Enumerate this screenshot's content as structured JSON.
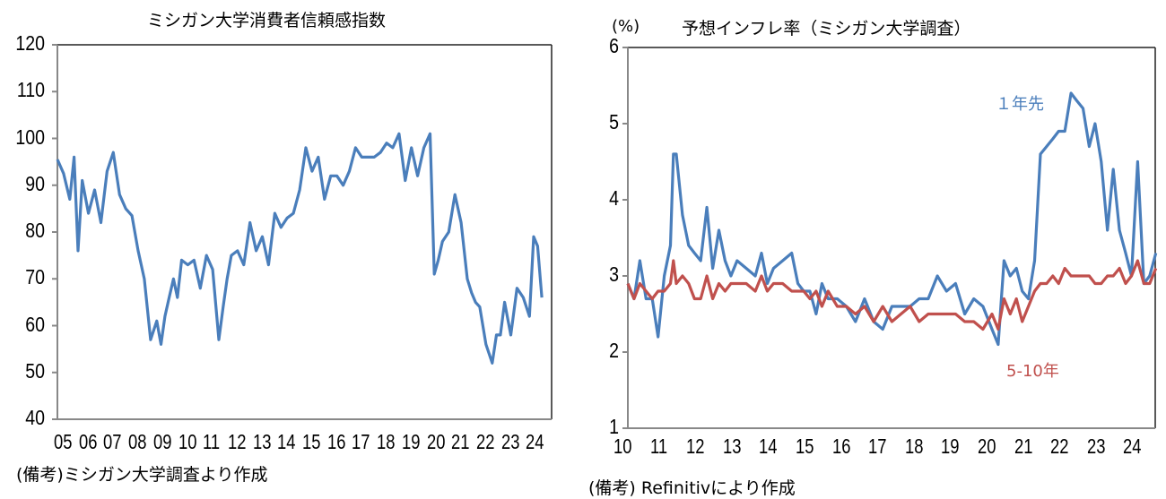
{
  "chart_data": [
    {
      "type": "line",
      "title": "ミシガン大学消費者信頼感指数",
      "xlabel": "",
      "ylabel": "",
      "ylim": [
        40,
        120
      ],
      "yticks": [
        40,
        50,
        60,
        70,
        80,
        90,
        100,
        110,
        120
      ],
      "categories": [
        "05",
        "06",
        "07",
        "08",
        "09",
        "10",
        "11",
        "12",
        "13",
        "14",
        "15",
        "16",
        "17",
        "18",
        "19",
        "20",
        "21",
        "22",
        "23",
        "24"
      ],
      "grid": false,
      "series": [
        {
          "name": "ミシガン大学消費者信頼感指数",
          "color": "#4A7EBB",
          "x": [
            2005.0,
            2005.25,
            2005.5,
            2005.67,
            2005.83,
            2006.0,
            2006.25,
            2006.5,
            2006.75,
            2007.0,
            2007.25,
            2007.5,
            2007.75,
            2008.0,
            2008.25,
            2008.5,
            2008.75,
            2009.0,
            2009.17,
            2009.33,
            2009.5,
            2009.67,
            2009.83,
            2010.0,
            2010.25,
            2010.5,
            2010.75,
            2011.0,
            2011.25,
            2011.5,
            2011.67,
            2011.83,
            2012.0,
            2012.25,
            2012.5,
            2012.75,
            2013.0,
            2013.25,
            2013.5,
            2013.75,
            2014.0,
            2014.25,
            2014.5,
            2014.75,
            2015.0,
            2015.25,
            2015.5,
            2015.75,
            2016.0,
            2016.25,
            2016.5,
            2016.75,
            2017.0,
            2017.25,
            2017.5,
            2017.75,
            2018.0,
            2018.25,
            2018.5,
            2018.75,
            2019.0,
            2019.25,
            2019.5,
            2019.75,
            2020.0,
            2020.17,
            2020.33,
            2020.5,
            2020.75,
            2021.0,
            2021.25,
            2021.5,
            2021.67,
            2021.83,
            2022.0,
            2022.25,
            2022.5,
            2022.67,
            2022.83,
            2023.0,
            2023.25,
            2023.5,
            2023.75,
            2024.0,
            2024.17,
            2024.33,
            2024.5
          ],
          "values": [
            95.5,
            92.5,
            87,
            96,
            76,
            91,
            84,
            89,
            82,
            93,
            97,
            88,
            85,
            83.5,
            76,
            70,
            57,
            61,
            56,
            62,
            66,
            70,
            66,
            74,
            73,
            74,
            68,
            75,
            72,
            57,
            64,
            70,
            75,
            76,
            73,
            82,
            76,
            79,
            73,
            84,
            81,
            83,
            84,
            89,
            98,
            93,
            96,
            87,
            92,
            92,
            90,
            93,
            98,
            96,
            96,
            96,
            97,
            99,
            98,
            101,
            91,
            98,
            92,
            98,
            101,
            71,
            74,
            78,
            80,
            88,
            82,
            70,
            67,
            65,
            64,
            56,
            52,
            58,
            58,
            65,
            58,
            68,
            66,
            62,
            79,
            77,
            66
          ]
        }
      ]
    },
    {
      "type": "line",
      "title": "予想インフレ率（ミシガン大学調査）",
      "xlabel": "",
      "ylabel": "(%)",
      "ylim": [
        1,
        6
      ],
      "yticks": [
        1,
        2,
        3,
        4,
        5,
        6
      ],
      "categories": [
        "10",
        "11",
        "12",
        "13",
        "14",
        "15",
        "16",
        "17",
        "18",
        "19",
        "20",
        "21",
        "22",
        "23",
        "24"
      ],
      "grid": false,
      "annotations": [
        "1年先",
        "5-10年"
      ],
      "series": [
        {
          "name": "1年先",
          "color": "#4A7EBB",
          "x": [
            2010.0,
            2010.17,
            2010.33,
            2010.5,
            2010.67,
            2010.83,
            2011.0,
            2011.17,
            2011.25,
            2011.33,
            2011.5,
            2011.67,
            2011.83,
            2012.0,
            2012.17,
            2012.33,
            2012.5,
            2012.67,
            2012.83,
            2013.0,
            2013.25,
            2013.5,
            2013.67,
            2013.83,
            2014.0,
            2014.25,
            2014.5,
            2014.67,
            2014.83,
            2015.0,
            2015.17,
            2015.33,
            2015.5,
            2015.75,
            2016.0,
            2016.25,
            2016.5,
            2016.75,
            2017.0,
            2017.25,
            2017.5,
            2017.75,
            2018.0,
            2018.25,
            2018.5,
            2018.75,
            2019.0,
            2019.25,
            2019.5,
            2019.75,
            2020.0,
            2020.17,
            2020.33,
            2020.5,
            2020.67,
            2020.83,
            2021.0,
            2021.17,
            2021.33,
            2021.5,
            2021.67,
            2021.83,
            2022.0,
            2022.17,
            2022.33,
            2022.5,
            2022.67,
            2022.83,
            2023.0,
            2023.17,
            2023.33,
            2023.5,
            2023.67,
            2023.83,
            2024.0,
            2024.17,
            2024.33,
            2024.5
          ],
          "values": [
            2.9,
            2.7,
            3.2,
            2.7,
            2.7,
            2.2,
            3.0,
            3.4,
            4.6,
            4.6,
            3.8,
            3.4,
            3.3,
            3.2,
            3.9,
            3.1,
            3.6,
            3.2,
            3.0,
            3.2,
            3.1,
            3.0,
            3.3,
            2.9,
            3.1,
            3.2,
            3.3,
            2.9,
            2.8,
            2.8,
            2.5,
            2.9,
            2.7,
            2.7,
            2.6,
            2.4,
            2.7,
            2.4,
            2.3,
            2.6,
            2.6,
            2.6,
            2.7,
            2.7,
            3.0,
            2.8,
            2.9,
            2.5,
            2.7,
            2.6,
            2.3,
            2.1,
            3.2,
            3.0,
            3.1,
            2.8,
            2.7,
            3.2,
            4.6,
            4.7,
            4.8,
            4.9,
            4.9,
            5.4,
            5.3,
            5.2,
            4.7,
            5.0,
            4.5,
            3.6,
            4.4,
            3.6,
            3.3,
            3.0,
            4.5,
            2.9,
            3.0,
            3.3
          ]
        },
        {
          "name": "5-10年",
          "color": "#C0504D",
          "x": [
            2010.0,
            2010.17,
            2010.33,
            2010.5,
            2010.67,
            2010.83,
            2011.0,
            2011.17,
            2011.25,
            2011.33,
            2011.5,
            2011.67,
            2011.83,
            2012.0,
            2012.17,
            2012.33,
            2012.5,
            2012.67,
            2012.83,
            2013.0,
            2013.25,
            2013.5,
            2013.67,
            2013.83,
            2014.0,
            2014.25,
            2014.5,
            2014.67,
            2014.83,
            2015.0,
            2015.17,
            2015.33,
            2015.5,
            2015.75,
            2016.0,
            2016.25,
            2016.5,
            2016.75,
            2017.0,
            2017.25,
            2017.5,
            2017.75,
            2018.0,
            2018.25,
            2018.5,
            2018.75,
            2019.0,
            2019.25,
            2019.5,
            2019.75,
            2020.0,
            2020.17,
            2020.33,
            2020.5,
            2020.67,
            2020.83,
            2021.0,
            2021.17,
            2021.33,
            2021.5,
            2021.67,
            2021.83,
            2022.0,
            2022.17,
            2022.33,
            2022.5,
            2022.67,
            2022.83,
            2023.0,
            2023.17,
            2023.33,
            2023.5,
            2023.67,
            2023.83,
            2024.0,
            2024.17,
            2024.33,
            2024.5
          ],
          "values": [
            2.9,
            2.7,
            2.9,
            2.8,
            2.7,
            2.8,
            2.8,
            2.9,
            3.2,
            2.9,
            3.0,
            2.9,
            2.7,
            2.7,
            3.0,
            2.7,
            2.9,
            2.8,
            2.9,
            2.9,
            2.9,
            2.8,
            3.0,
            2.8,
            2.9,
            2.9,
            2.8,
            2.8,
            2.8,
            2.7,
            2.8,
            2.6,
            2.8,
            2.6,
            2.6,
            2.5,
            2.6,
            2.4,
            2.6,
            2.4,
            2.5,
            2.6,
            2.4,
            2.5,
            2.5,
            2.5,
            2.5,
            2.4,
            2.4,
            2.3,
            2.5,
            2.3,
            2.7,
            2.5,
            2.7,
            2.4,
            2.6,
            2.8,
            2.9,
            2.9,
            3.0,
            2.9,
            3.1,
            3.0,
            3.0,
            3.0,
            3.0,
            2.9,
            2.9,
            3.0,
            3.0,
            3.1,
            2.9,
            3.0,
            3.2,
            2.9,
            2.9,
            3.1
          ]
        }
      ]
    }
  ],
  "left": {
    "title": "ミシガン大学消費者信頼感指数",
    "note": "(備考)ミシガン大学調査より作成",
    "yticks": [
      "120",
      "110",
      "100",
      "90",
      "80",
      "70",
      "60",
      "50",
      "40"
    ],
    "xticks": [
      "05",
      "06",
      "07",
      "08",
      "09",
      "10",
      "11",
      "12",
      "13",
      "14",
      "15",
      "16",
      "17",
      "18",
      "19",
      "20",
      "21",
      "22",
      "23",
      "24"
    ]
  },
  "right": {
    "title": "予想インフレ率（ミシガン大学調査）",
    "unit": "(%)",
    "note": "(備考) Refinitivにより作成",
    "yticks": [
      "6",
      "5",
      "4",
      "3",
      "2",
      "1"
    ],
    "xticks": [
      "10",
      "11",
      "12",
      "13",
      "14",
      "15",
      "16",
      "17",
      "18",
      "19",
      "20",
      "21",
      "22",
      "23",
      "24"
    ],
    "label_1y": "１年先",
    "label_5_10y": "5-10年"
  }
}
